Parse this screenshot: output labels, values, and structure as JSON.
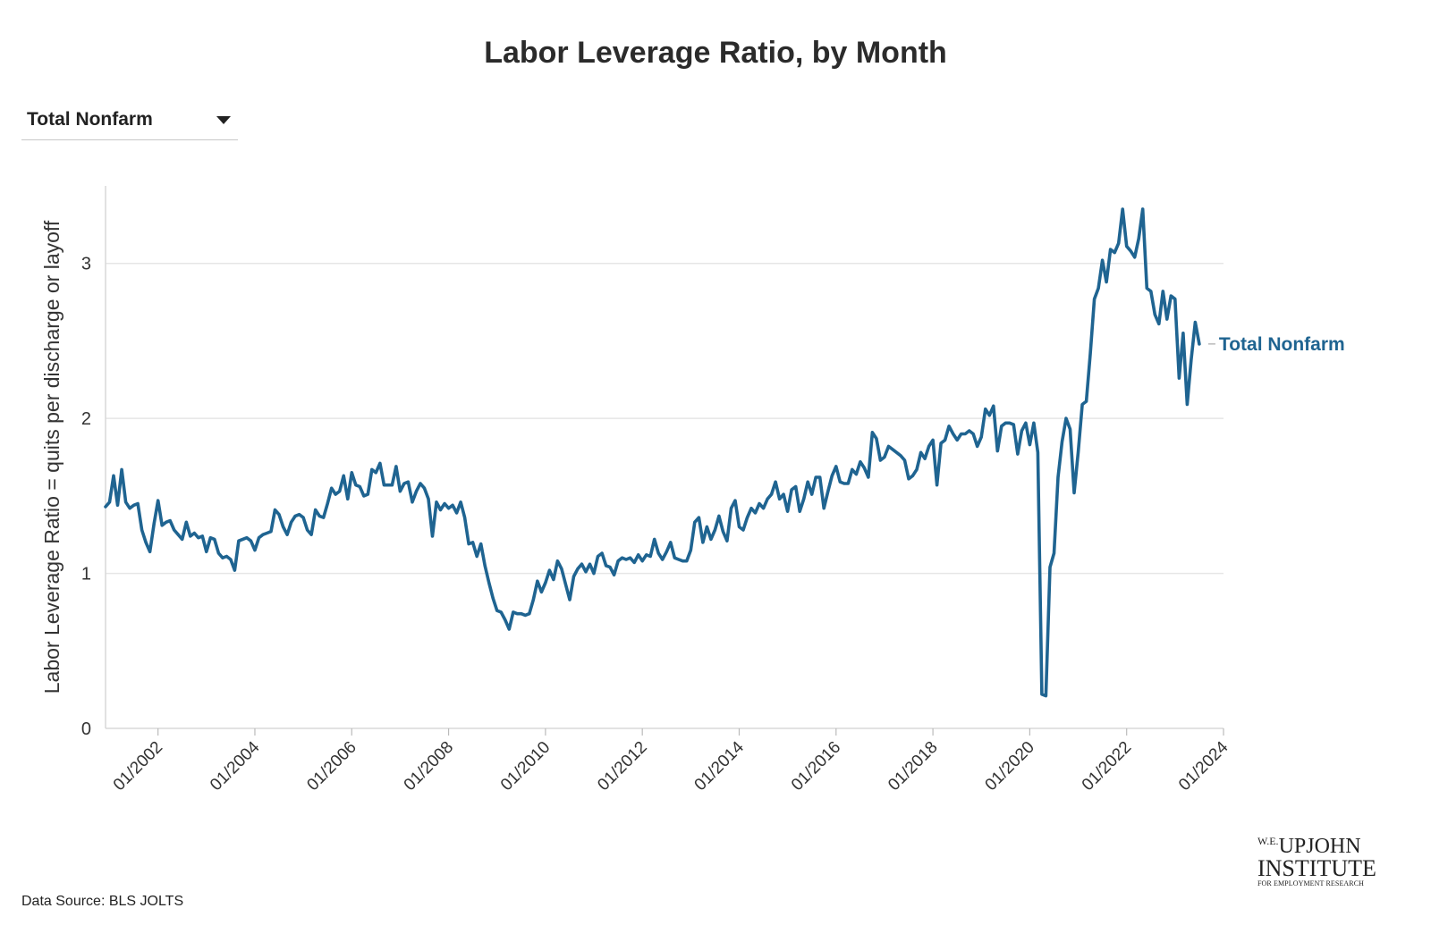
{
  "title": "Labor Leverage Ratio, by Month",
  "dropdown": {
    "selected": "Total Nonfarm"
  },
  "source": "Data Source: BLS JOLTS",
  "logo": {
    "line1_prefix": "W.E.",
    "line1": "UPJOHN",
    "line2": "INSTITUTE",
    "line3": "FOR EMPLOYMENT RESEARCH"
  },
  "colors": {
    "series": "#1f6491",
    "grid": "#e6e6e6",
    "text": "#222222"
  },
  "chart_data": {
    "type": "line",
    "title": "Labor Leverage Ratio, by Month",
    "ylabel": "Labor Leverage Ratio = quits per discharge or layoff",
    "xlabel": "",
    "ylim": [
      0,
      3.5
    ],
    "yticks": [
      0,
      1,
      2,
      3
    ],
    "ytick_labels": [
      "0",
      "1",
      "2",
      "3"
    ],
    "xlim": [
      "2000-12",
      "2024-01"
    ],
    "xticks": [
      "2002-01",
      "2004-01",
      "2006-01",
      "2008-01",
      "2010-01",
      "2012-01",
      "2014-01",
      "2016-01",
      "2018-01",
      "2020-01",
      "2022-01",
      "2024-01"
    ],
    "xtick_labels": [
      "01/2002",
      "01/2004",
      "01/2006",
      "01/2008",
      "01/2010",
      "01/2012",
      "01/2014",
      "01/2016",
      "01/2018",
      "01/2020",
      "01/2022",
      "01/2024"
    ],
    "grid": true,
    "series": [
      {
        "name": "Total Nonfarm",
        "color": "#1f6491",
        "points": [
          [
            "2000-12",
            1.43
          ],
          [
            "2001-01",
            1.46
          ],
          [
            "2001-02",
            1.63
          ],
          [
            "2001-03",
            1.44
          ],
          [
            "2001-04",
            1.67
          ],
          [
            "2001-05",
            1.46
          ],
          [
            "2001-06",
            1.42
          ],
          [
            "2001-07",
            1.44
          ],
          [
            "2001-08",
            1.45
          ],
          [
            "2001-09",
            1.28
          ],
          [
            "2001-10",
            1.2
          ],
          [
            "2001-11",
            1.14
          ],
          [
            "2001-12",
            1.32
          ],
          [
            "2002-01",
            1.47
          ],
          [
            "2002-02",
            1.31
          ],
          [
            "2002-03",
            1.33
          ],
          [
            "2002-04",
            1.34
          ],
          [
            "2002-05",
            1.28
          ],
          [
            "2002-06",
            1.25
          ],
          [
            "2002-07",
            1.22
          ],
          [
            "2002-08",
            1.33
          ],
          [
            "2002-09",
            1.24
          ],
          [
            "2002-10",
            1.26
          ],
          [
            "2002-11",
            1.23
          ],
          [
            "2002-12",
            1.24
          ],
          [
            "2003-01",
            1.14
          ],
          [
            "2003-02",
            1.23
          ],
          [
            "2003-03",
            1.22
          ],
          [
            "2003-04",
            1.13
          ],
          [
            "2003-05",
            1.1
          ],
          [
            "2003-06",
            1.11
          ],
          [
            "2003-07",
            1.09
          ],
          [
            "2003-08",
            1.02
          ],
          [
            "2003-09",
            1.21
          ],
          [
            "2003-10",
            1.22
          ],
          [
            "2003-11",
            1.23
          ],
          [
            "2003-12",
            1.21
          ],
          [
            "2004-01",
            1.15
          ],
          [
            "2004-02",
            1.23
          ],
          [
            "2004-03",
            1.25
          ],
          [
            "2004-04",
            1.26
          ],
          [
            "2004-05",
            1.27
          ],
          [
            "2004-06",
            1.41
          ],
          [
            "2004-07",
            1.38
          ],
          [
            "2004-08",
            1.3
          ],
          [
            "2004-09",
            1.25
          ],
          [
            "2004-10",
            1.33
          ],
          [
            "2004-11",
            1.37
          ],
          [
            "2004-12",
            1.38
          ],
          [
            "2005-01",
            1.36
          ],
          [
            "2005-02",
            1.28
          ],
          [
            "2005-03",
            1.25
          ],
          [
            "2005-04",
            1.41
          ],
          [
            "2005-05",
            1.37
          ],
          [
            "2005-06",
            1.36
          ],
          [
            "2005-07",
            1.45
          ],
          [
            "2005-08",
            1.55
          ],
          [
            "2005-09",
            1.51
          ],
          [
            "2005-10",
            1.53
          ],
          [
            "2005-11",
            1.63
          ],
          [
            "2005-12",
            1.48
          ],
          [
            "2006-01",
            1.65
          ],
          [
            "2006-02",
            1.57
          ],
          [
            "2006-03",
            1.56
          ],
          [
            "2006-04",
            1.5
          ],
          [
            "2006-05",
            1.51
          ],
          [
            "2006-06",
            1.67
          ],
          [
            "2006-07",
            1.65
          ],
          [
            "2006-08",
            1.71
          ],
          [
            "2006-09",
            1.57
          ],
          [
            "2006-10",
            1.57
          ],
          [
            "2006-11",
            1.57
          ],
          [
            "2006-12",
            1.69
          ],
          [
            "2007-01",
            1.53
          ],
          [
            "2007-02",
            1.58
          ],
          [
            "2007-03",
            1.59
          ],
          [
            "2007-04",
            1.46
          ],
          [
            "2007-05",
            1.53
          ],
          [
            "2007-06",
            1.58
          ],
          [
            "2007-07",
            1.55
          ],
          [
            "2007-08",
            1.48
          ],
          [
            "2007-09",
            1.24
          ],
          [
            "2007-10",
            1.46
          ],
          [
            "2007-11",
            1.41
          ],
          [
            "2007-12",
            1.45
          ],
          [
            "2008-01",
            1.42
          ],
          [
            "2008-02",
            1.44
          ],
          [
            "2008-03",
            1.39
          ],
          [
            "2008-04",
            1.46
          ],
          [
            "2008-05",
            1.36
          ],
          [
            "2008-06",
            1.19
          ],
          [
            "2008-07",
            1.2
          ],
          [
            "2008-08",
            1.11
          ],
          [
            "2008-09",
            1.19
          ],
          [
            "2008-10",
            1.05
          ],
          [
            "2008-11",
            0.94
          ],
          [
            "2008-12",
            0.84
          ],
          [
            "2009-01",
            0.76
          ],
          [
            "2009-02",
            0.75
          ],
          [
            "2009-03",
            0.7
          ],
          [
            "2009-04",
            0.64
          ],
          [
            "2009-05",
            0.75
          ],
          [
            "2009-06",
            0.74
          ],
          [
            "2009-07",
            0.74
          ],
          [
            "2009-08",
            0.73
          ],
          [
            "2009-09",
            0.74
          ],
          [
            "2009-10",
            0.83
          ],
          [
            "2009-11",
            0.95
          ],
          [
            "2009-12",
            0.88
          ],
          [
            "2010-01",
            0.94
          ],
          [
            "2010-02",
            1.02
          ],
          [
            "2010-03",
            0.96
          ],
          [
            "2010-04",
            1.08
          ],
          [
            "2010-05",
            1.03
          ],
          [
            "2010-06",
            0.93
          ],
          [
            "2010-07",
            0.83
          ],
          [
            "2010-08",
            0.98
          ],
          [
            "2010-09",
            1.03
          ],
          [
            "2010-10",
            1.06
          ],
          [
            "2010-11",
            1.01
          ],
          [
            "2010-12",
            1.06
          ],
          [
            "2011-01",
            1.0
          ],
          [
            "2011-02",
            1.11
          ],
          [
            "2011-03",
            1.13
          ],
          [
            "2011-04",
            1.05
          ],
          [
            "2011-05",
            1.04
          ],
          [
            "2011-06",
            0.99
          ],
          [
            "2011-07",
            1.08
          ],
          [
            "2011-08",
            1.1
          ],
          [
            "2011-09",
            1.09
          ],
          [
            "2011-10",
            1.1
          ],
          [
            "2011-11",
            1.07
          ],
          [
            "2011-12",
            1.12
          ],
          [
            "2012-01",
            1.08
          ],
          [
            "2012-02",
            1.12
          ],
          [
            "2012-03",
            1.11
          ],
          [
            "2012-04",
            1.22
          ],
          [
            "2012-05",
            1.13
          ],
          [
            "2012-06",
            1.09
          ],
          [
            "2012-07",
            1.14
          ],
          [
            "2012-08",
            1.2
          ],
          [
            "2012-09",
            1.1
          ],
          [
            "2012-10",
            1.09
          ],
          [
            "2012-11",
            1.08
          ],
          [
            "2012-12",
            1.08
          ],
          [
            "2013-01",
            1.15
          ],
          [
            "2013-02",
            1.33
          ],
          [
            "2013-03",
            1.36
          ],
          [
            "2013-04",
            1.2
          ],
          [
            "2013-05",
            1.3
          ],
          [
            "2013-06",
            1.22
          ],
          [
            "2013-07",
            1.28
          ],
          [
            "2013-08",
            1.37
          ],
          [
            "2013-09",
            1.27
          ],
          [
            "2013-10",
            1.21
          ],
          [
            "2013-11",
            1.42
          ],
          [
            "2013-12",
            1.47
          ],
          [
            "2014-01",
            1.3
          ],
          [
            "2014-02",
            1.28
          ],
          [
            "2014-03",
            1.36
          ],
          [
            "2014-04",
            1.42
          ],
          [
            "2014-05",
            1.39
          ],
          [
            "2014-06",
            1.45
          ],
          [
            "2014-07",
            1.42
          ],
          [
            "2014-08",
            1.48
          ],
          [
            "2014-09",
            1.51
          ],
          [
            "2014-10",
            1.59
          ],
          [
            "2014-11",
            1.48
          ],
          [
            "2014-12",
            1.51
          ],
          [
            "2015-01",
            1.4
          ],
          [
            "2015-02",
            1.54
          ],
          [
            "2015-03",
            1.56
          ],
          [
            "2015-04",
            1.4
          ],
          [
            "2015-05",
            1.48
          ],
          [
            "2015-06",
            1.59
          ],
          [
            "2015-07",
            1.51
          ],
          [
            "2015-08",
            1.62
          ],
          [
            "2015-09",
            1.62
          ],
          [
            "2015-10",
            1.42
          ],
          [
            "2015-11",
            1.53
          ],
          [
            "2015-12",
            1.63
          ],
          [
            "2016-01",
            1.69
          ],
          [
            "2016-02",
            1.59
          ],
          [
            "2016-03",
            1.58
          ],
          [
            "2016-04",
            1.58
          ],
          [
            "2016-05",
            1.67
          ],
          [
            "2016-06",
            1.64
          ],
          [
            "2016-07",
            1.72
          ],
          [
            "2016-08",
            1.68
          ],
          [
            "2016-09",
            1.62
          ],
          [
            "2016-10",
            1.91
          ],
          [
            "2016-11",
            1.87
          ],
          [
            "2016-12",
            1.73
          ],
          [
            "2017-01",
            1.75
          ],
          [
            "2017-02",
            1.82
          ],
          [
            "2017-03",
            1.8
          ],
          [
            "2017-04",
            1.78
          ],
          [
            "2017-05",
            1.76
          ],
          [
            "2017-06",
            1.73
          ],
          [
            "2017-07",
            1.61
          ],
          [
            "2017-08",
            1.63
          ],
          [
            "2017-09",
            1.67
          ],
          [
            "2017-10",
            1.78
          ],
          [
            "2017-11",
            1.74
          ],
          [
            "2017-12",
            1.82
          ],
          [
            "2018-01",
            1.86
          ],
          [
            "2018-02",
            1.57
          ],
          [
            "2018-03",
            1.84
          ],
          [
            "2018-04",
            1.86
          ],
          [
            "2018-05",
            1.95
          ],
          [
            "2018-06",
            1.9
          ],
          [
            "2018-07",
            1.86
          ],
          [
            "2018-08",
            1.9
          ],
          [
            "2018-09",
            1.9
          ],
          [
            "2018-10",
            1.92
          ],
          [
            "2018-11",
            1.9
          ],
          [
            "2018-12",
            1.82
          ],
          [
            "2019-01",
            1.88
          ],
          [
            "2019-02",
            2.06
          ],
          [
            "2019-03",
            2.02
          ],
          [
            "2019-04",
            2.08
          ],
          [
            "2019-05",
            1.79
          ],
          [
            "2019-06",
            1.95
          ],
          [
            "2019-07",
            1.97
          ],
          [
            "2019-08",
            1.97
          ],
          [
            "2019-09",
            1.96
          ],
          [
            "2019-10",
            1.77
          ],
          [
            "2019-11",
            1.92
          ],
          [
            "2019-12",
            1.97
          ],
          [
            "2020-01",
            1.83
          ],
          [
            "2020-02",
            1.97
          ],
          [
            "2020-03",
            1.78
          ],
          [
            "2020-04",
            0.22
          ],
          [
            "2020-05",
            0.21
          ],
          [
            "2020-06",
            1.04
          ],
          [
            "2020-07",
            1.13
          ],
          [
            "2020-08",
            1.62
          ],
          [
            "2020-09",
            1.85
          ],
          [
            "2020-10",
            2.0
          ],
          [
            "2020-11",
            1.93
          ],
          [
            "2020-12",
            1.52
          ],
          [
            "2021-01",
            1.78
          ],
          [
            "2021-02",
            2.09
          ],
          [
            "2021-03",
            2.11
          ],
          [
            "2021-04",
            2.42
          ],
          [
            "2021-05",
            2.77
          ],
          [
            "2021-06",
            2.84
          ],
          [
            "2021-07",
            3.02
          ],
          [
            "2021-08",
            2.88
          ],
          [
            "2021-09",
            3.09
          ],
          [
            "2021-10",
            3.07
          ],
          [
            "2021-11",
            3.13
          ],
          [
            "2021-12",
            3.35
          ],
          [
            "2022-01",
            3.11
          ],
          [
            "2022-02",
            3.08
          ],
          [
            "2022-03",
            3.04
          ],
          [
            "2022-04",
            3.16
          ],
          [
            "2022-05",
            3.35
          ],
          [
            "2022-06",
            2.84
          ],
          [
            "2022-07",
            2.82
          ],
          [
            "2022-08",
            2.67
          ],
          [
            "2022-09",
            2.61
          ],
          [
            "2022-10",
            2.82
          ],
          [
            "2022-11",
            2.64
          ],
          [
            "2022-12",
            2.79
          ],
          [
            "2023-01",
            2.77
          ],
          [
            "2023-02",
            2.26
          ],
          [
            "2023-03",
            2.55
          ],
          [
            "2023-04",
            2.09
          ],
          [
            "2023-05",
            2.38
          ],
          [
            "2023-06",
            2.62
          ],
          [
            "2023-07",
            2.48
          ]
        ]
      }
    ],
    "end_label": "Total Nonfarm"
  }
}
